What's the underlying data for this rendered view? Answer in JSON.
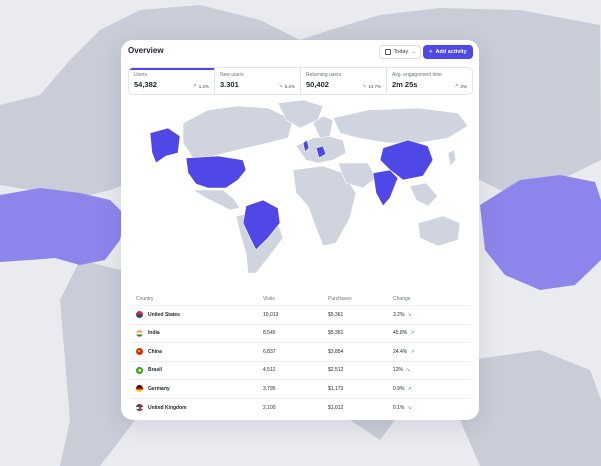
{
  "header": {
    "title": "Overview",
    "today_label": "Today",
    "add_label": "Add activity"
  },
  "stats": [
    {
      "label": "Users",
      "value": "54,382",
      "change": "1.2%",
      "trend": "up"
    },
    {
      "label": "New users",
      "value": "3.301",
      "change": "5.2%",
      "trend": "down"
    },
    {
      "label": "Returning users",
      "value": "50,402",
      "change": "14.7%",
      "trend": "down"
    },
    {
      "label": "Avg. engagement time",
      "value": "2m 25s",
      "change": "3%",
      "trend": "up"
    }
  ],
  "table": {
    "headers": {
      "country": "Country",
      "visits": "Visits",
      "purchases": "Purchases",
      "change": "Change"
    },
    "rows": [
      {
        "country": "United States",
        "visits": "10,013",
        "purchases": "$5,361",
        "change": "3.2%",
        "trend": "down",
        "flag": "us-flag-icon"
      },
      {
        "country": "India",
        "visits": "8,545",
        "purchases": "$5,361",
        "change": "45.8%",
        "trend": "up",
        "flag": "india-flag-icon"
      },
      {
        "country": "China",
        "visits": "6,837",
        "purchases": "$3,854",
        "change": "24.4%",
        "trend": "up",
        "flag": "china-flag-icon"
      },
      {
        "country": "Brasil",
        "visits": "4,512",
        "purchases": "$2,512",
        "change": "12%",
        "trend": "down",
        "flag": "brazil-flag-icon"
      },
      {
        "country": "Germany",
        "visits": "3,795",
        "purchases": "$1,173",
        "change": "0.9%",
        "trend": "up",
        "flag": "germany-flag-icon"
      },
      {
        "country": "United Kingdom",
        "visits": "2,100",
        "purchases": "$1,012",
        "change": "0.1%",
        "trend": "down",
        "flag": "uk-flag-icon"
      }
    ]
  },
  "colors": {
    "accent": "#4f47e6",
    "map_highlight": "#4f47e6",
    "map_base": "#d0d4de",
    "bg_highlight": "#8c86ec",
    "bg_land": "#c9cdd7",
    "up": "#22a55a",
    "down": "#e0456a"
  }
}
